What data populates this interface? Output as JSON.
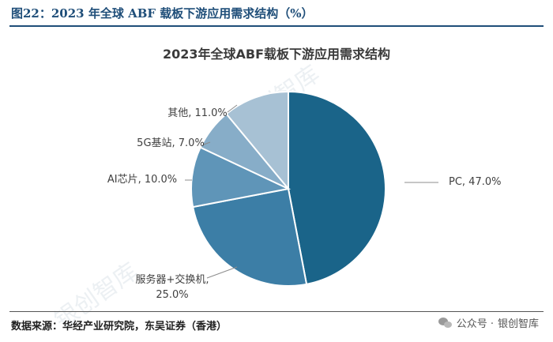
{
  "figure_title": "图22：2023 年全球 ABF 载板下游应用需求结构（%）",
  "source": "数据来源：华经产业研究院，东吴证券（香港）",
  "wechat": {
    "prefix": "公众号 · ",
    "name": "银创智库"
  },
  "watermark": "银创智库",
  "chart_data": {
    "type": "pie",
    "title": "2023年全球ABF载板下游应用需求结构",
    "slices": [
      {
        "name": "PC",
        "value": 47.0,
        "label": "PC, 47.0%",
        "color": "#1a6489"
      },
      {
        "name": "服务器+交换机",
        "value": 25.0,
        "label_lines": [
          "服务器+交换机,",
          "25.0%"
        ],
        "color": "#3c7ea6"
      },
      {
        "name": "AI芯片",
        "value": 10.0,
        "label": "AI芯片, 10.0%",
        "color": "#5f95b8"
      },
      {
        "name": "5G基站",
        "value": 7.0,
        "label": "5G基站, 7.0%",
        "color": "#87adc8"
      },
      {
        "name": "其他",
        "value": 11.0,
        "label": "其他, 11.0%",
        "color": "#a7c1d4"
      }
    ]
  }
}
